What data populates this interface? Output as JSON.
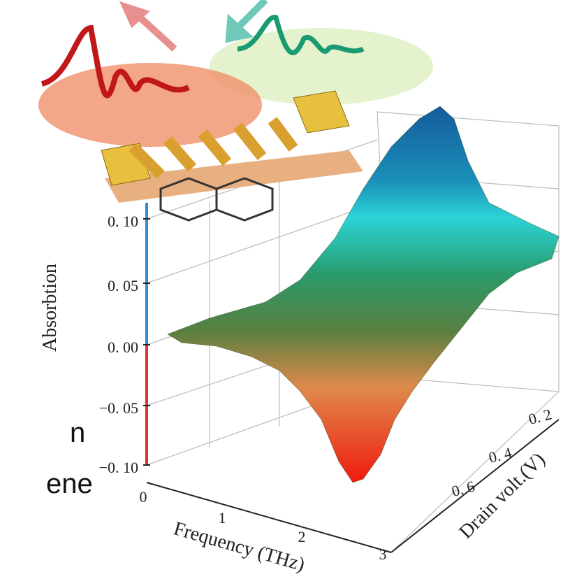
{
  "figure": {
    "side_text": [
      "n",
      "ene"
    ],
    "y_axis": {
      "label": "Absorbtion",
      "ticks": [
        "0. 10",
        "0. 05",
        "0. 00",
        "−0. 05",
        "−0. 10"
      ]
    },
    "x_axis": {
      "label": "Frequency (THz)",
      "ticks": [
        "0",
        "1",
        "2",
        "3"
      ]
    },
    "z_axis": {
      "label": "Drain volt.(V)",
      "ticks": [
        "0. 2",
        "0. 4",
        "0. 6"
      ]
    }
  }
}
